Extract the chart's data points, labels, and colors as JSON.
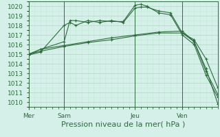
{
  "title": "Pression niveau de la mer( hPa )",
  "bg_color": "#d4f0e8",
  "grid_major_color": "#aad8c8",
  "grid_minor_color": "#c4e8d8",
  "line_color": "#2d6b3c",
  "ylim": [
    1009.5,
    1020.5
  ],
  "yticks": [
    1010,
    1011,
    1012,
    1013,
    1014,
    1015,
    1016,
    1017,
    1018,
    1019,
    1020
  ],
  "day_labels": [
    "Mer",
    "Sam",
    "Jeu",
    "Ven"
  ],
  "day_positions": [
    0,
    6,
    18,
    26
  ],
  "xlim": [
    0,
    32
  ],
  "series1_x": [
    0,
    2,
    6,
    7,
    8,
    10,
    12,
    14,
    16,
    18,
    19,
    20,
    22,
    24,
    26,
    28,
    30,
    32
  ],
  "series1_y": [
    1014.9,
    1015.2,
    1018.0,
    1018.3,
    1018.0,
    1018.5,
    1018.3,
    1018.5,
    1018.3,
    1019.8,
    1019.9,
    1019.9,
    1019.5,
    1019.3,
    1017.2,
    1016.3,
    1013.2,
    1010.8
  ],
  "series2_x": [
    0,
    2,
    6,
    7,
    8,
    10,
    12,
    14,
    16,
    18,
    19,
    20,
    22,
    24,
    26,
    28,
    30,
    32
  ],
  "series2_y": [
    1014.9,
    1015.5,
    1016.3,
    1018.5,
    1018.5,
    1018.3,
    1018.5,
    1018.4,
    1018.4,
    1020.1,
    1020.2,
    1020.0,
    1019.3,
    1019.1,
    1017.0,
    1016.0,
    1012.8,
    1010.5
  ],
  "series3_x": [
    0,
    2,
    6,
    10,
    14,
    18,
    22,
    26,
    28,
    30,
    32
  ],
  "series3_y": [
    1015.0,
    1015.3,
    1015.8,
    1016.2,
    1016.5,
    1016.9,
    1017.2,
    1017.2,
    1016.5,
    1014.5,
    1011.5
  ],
  "series4_x": [
    0,
    2,
    6,
    10,
    14,
    18,
    22,
    26,
    28,
    30,
    32
  ],
  "series4_y": [
    1015.0,
    1015.5,
    1015.9,
    1016.3,
    1016.7,
    1017.0,
    1017.3,
    1017.4,
    1016.3,
    1013.5,
    1009.8
  ],
  "title_fontsize": 8,
  "tick_fontsize": 6.5
}
